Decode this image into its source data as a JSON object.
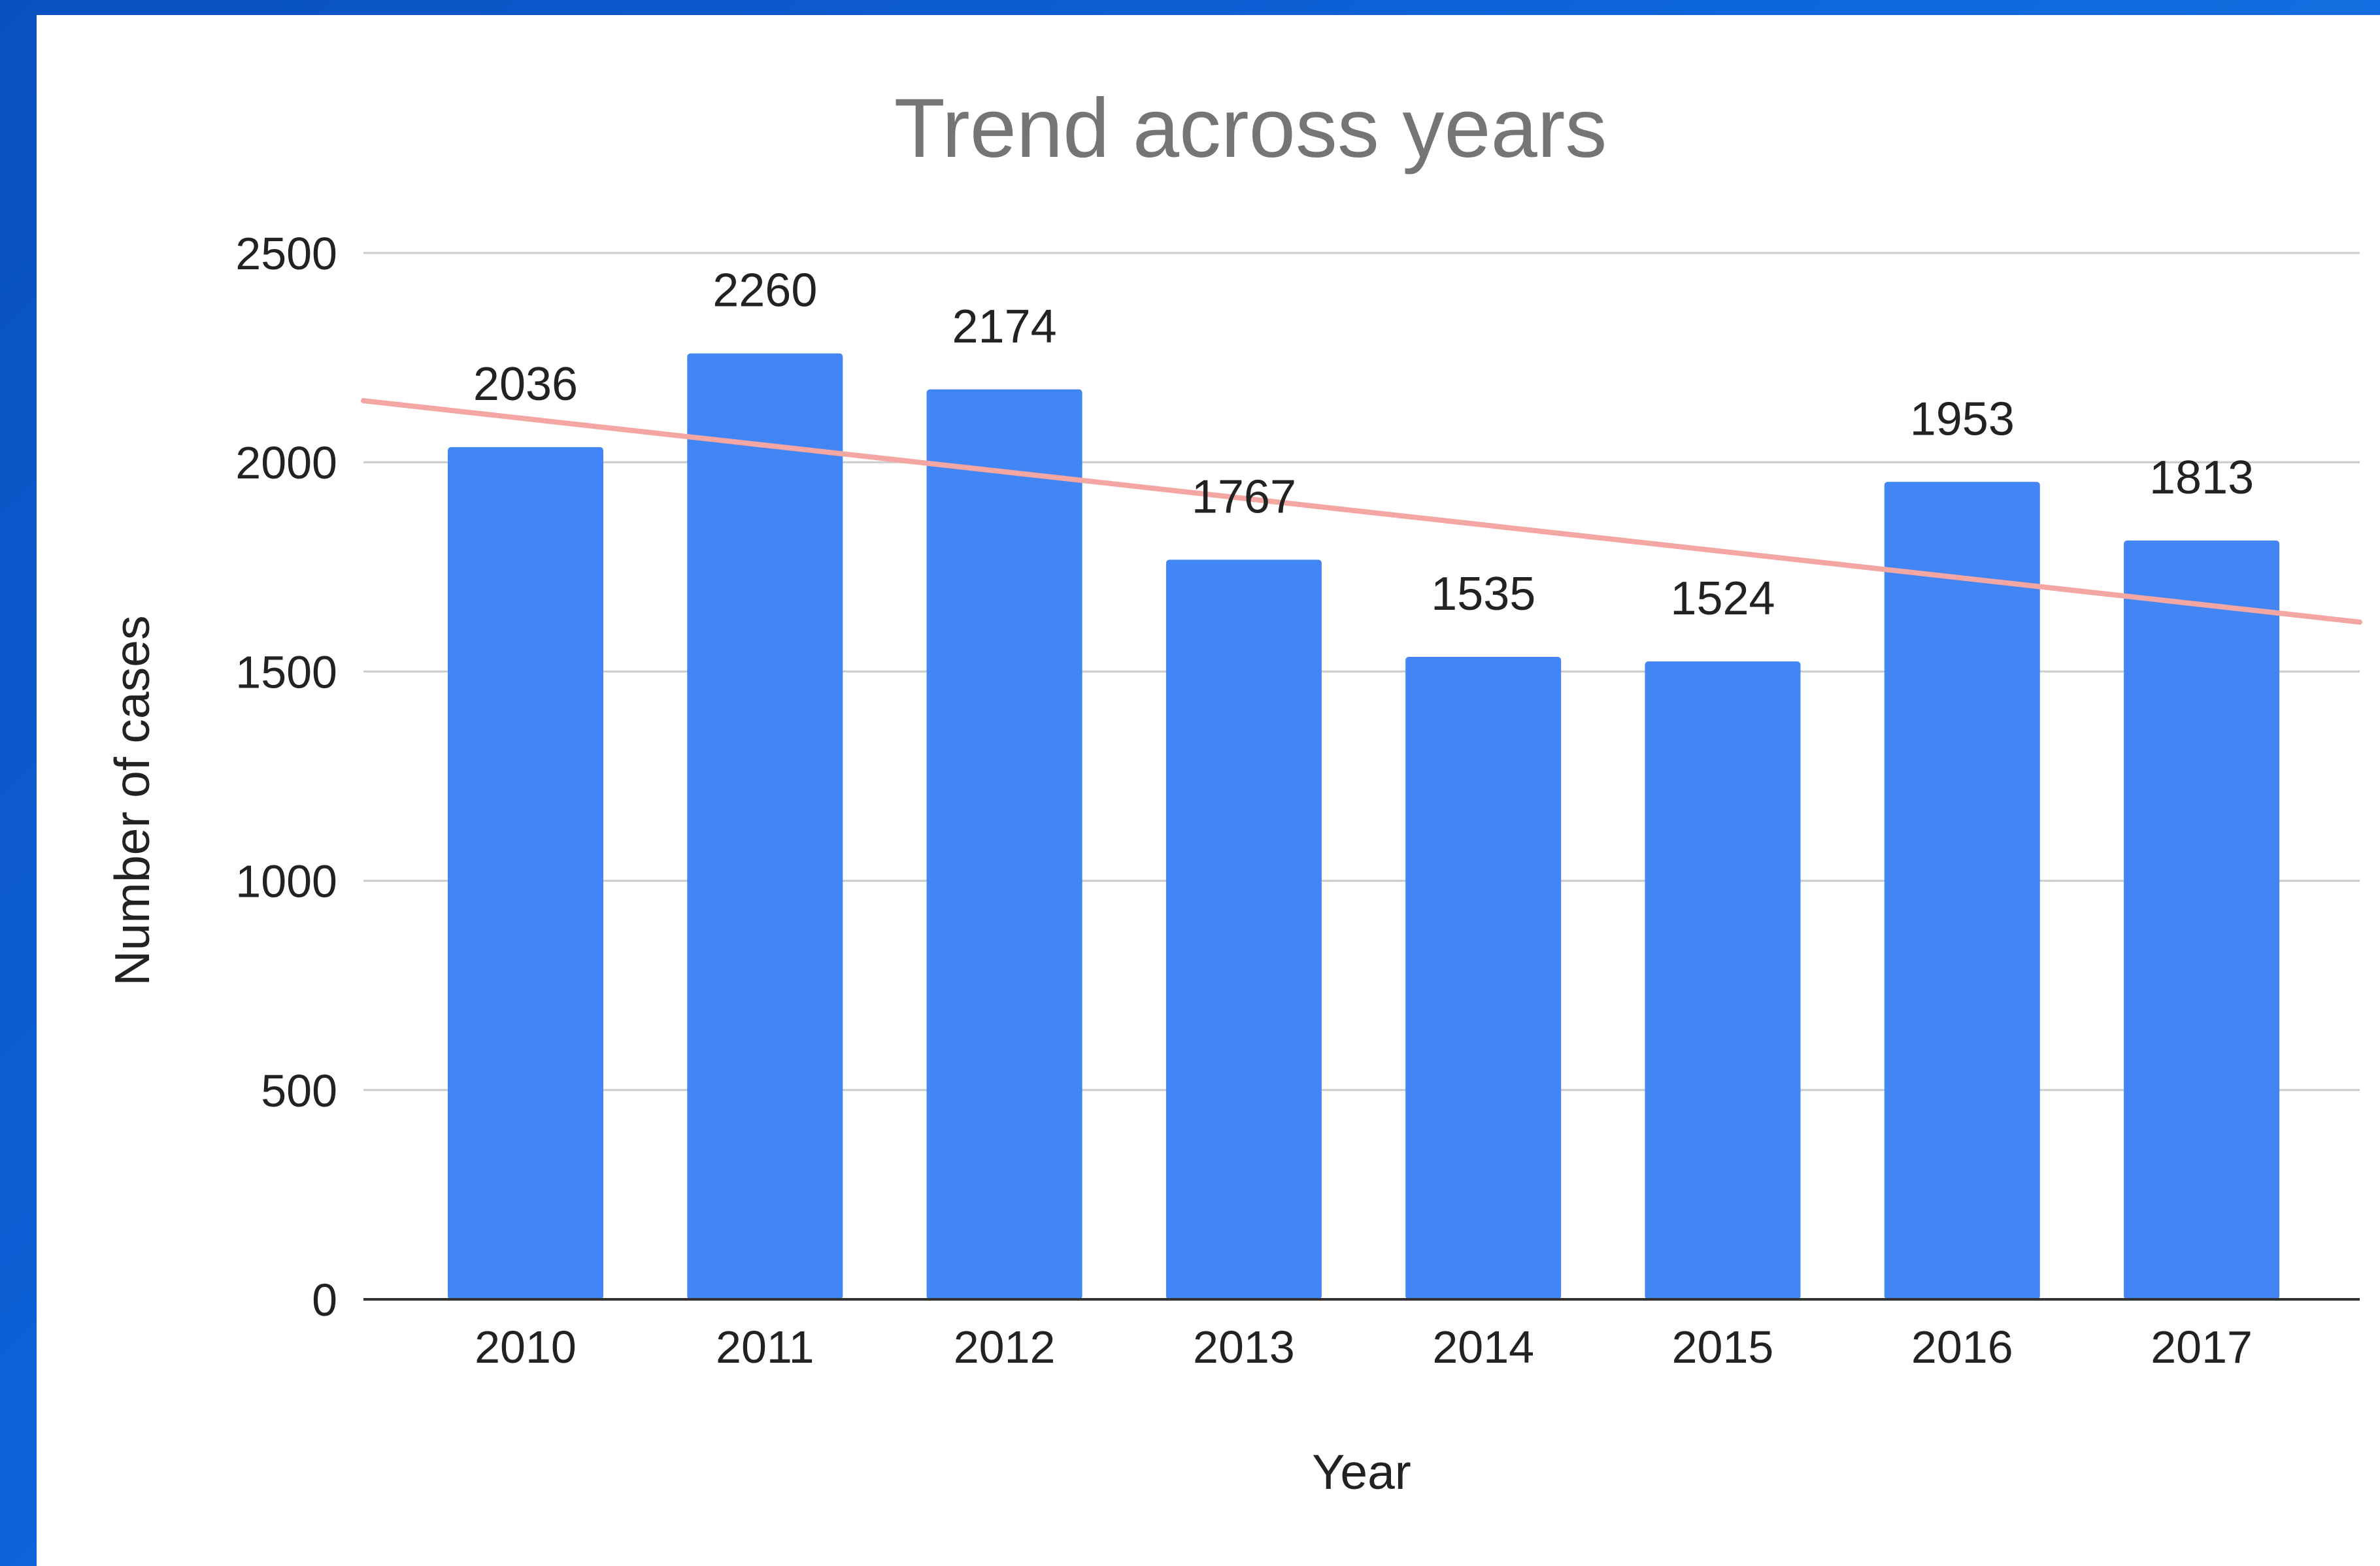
{
  "colors": {
    "background": "#0b5bd0",
    "panel": "#ffffff",
    "bar": "#4285f4",
    "trendline": "#f4a7a2",
    "grid": "#cccccc",
    "axis": "#333333"
  },
  "chart_data": {
    "type": "bar",
    "title": "Trend across years",
    "xlabel": "Year",
    "ylabel": "Number of cases",
    "categories": [
      "2010",
      "2011",
      "2012",
      "2013",
      "2014",
      "2015",
      "2016",
      "2017"
    ],
    "values": [
      2036,
      2260,
      2174,
      1767,
      1535,
      1524,
      1953,
      1813
    ],
    "data_labels": [
      "2036",
      "2260",
      "2174",
      "1767",
      "1535",
      "1524",
      "1953",
      "1813"
    ],
    "ylim": [
      0,
      2500
    ],
    "yticks": [
      0,
      500,
      1000,
      1500,
      2000,
      2500
    ],
    "ytick_labels": [
      "0",
      "500",
      "1000",
      "1500",
      "2000",
      "2500"
    ],
    "grid": true,
    "legend": "none",
    "trendline": {
      "type": "linear",
      "start_value": 2147,
      "end_value": 1618
    }
  }
}
